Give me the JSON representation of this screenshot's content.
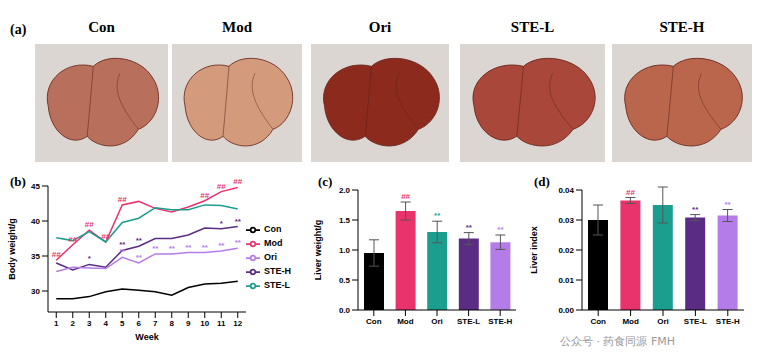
{
  "figure": {
    "title": "(a)",
    "photo_labels": [
      "Con",
      "Mod",
      "Ori",
      "STE-L",
      "STE-H"
    ]
  },
  "watermark": "公众号 · 药食同源 FMH",
  "chart_data": [
    {
      "type": "line",
      "title": "(b)",
      "xlabel": "Week",
      "ylabel": "Body weight/g",
      "x": [
        1,
        2,
        3,
        4,
        5,
        6,
        7,
        8,
        9,
        10,
        11,
        12
      ],
      "xlim": [
        0.5,
        12.5
      ],
      "xticks": [
        1,
        2,
        3,
        4,
        5,
        6,
        7,
        8,
        9,
        10,
        11,
        12
      ],
      "ylim": [
        27,
        45
      ],
      "yticks": [
        30,
        35,
        40,
        45
      ],
      "legend": "right",
      "series": [
        {
          "name": "Con",
          "color": "#000000",
          "values": [
            28.9,
            28.9,
            29.2,
            29.9,
            30.3,
            30.1,
            29.9,
            29.4,
            30.5,
            31.0,
            31.1,
            31.4
          ],
          "annotations": [
            null,
            null,
            null,
            null,
            null,
            null,
            null,
            null,
            null,
            null,
            null,
            null
          ]
        },
        {
          "name": "Mod",
          "color": "#e8336d",
          "values": [
            34.4,
            36.6,
            38.7,
            37.0,
            42.3,
            42.8,
            41.8,
            41.3,
            42.0,
            42.9,
            44.2,
            44.8
          ],
          "annotations": [
            "##",
            "##",
            "##",
            "##",
            "##",
            null,
            null,
            null,
            null,
            "##",
            "##",
            "##"
          ]
        },
        {
          "name": "STE-L",
          "color": "#1b9e8e",
          "values": [
            37.6,
            37.2,
            38.5,
            37.0,
            39.8,
            40.4,
            41.9,
            41.6,
            41.6,
            42.3,
            42.2,
            41.7
          ],
          "annotations": [
            null,
            null,
            null,
            null,
            null,
            null,
            null,
            null,
            null,
            null,
            null,
            null
          ]
        },
        {
          "name": "STE-H",
          "color": "#5b2c83",
          "values": [
            34.0,
            33.0,
            33.8,
            33.4,
            35.8,
            36.4,
            37.5,
            37.5,
            38.0,
            39.0,
            38.9,
            39.2
          ],
          "annotations": [
            null,
            null,
            "*",
            null,
            "**",
            "**",
            null,
            null,
            null,
            null,
            "*",
            "**"
          ]
        },
        {
          "name": "Ori",
          "color": "#b47ce8",
          "values": [
            32.8,
            33.4,
            33.3,
            33.2,
            34.8,
            34.0,
            35.3,
            35.3,
            35.5,
            35.5,
            35.7,
            36.1
          ],
          "annotations": [
            null,
            null,
            null,
            null,
            "**",
            "**",
            "**",
            "**",
            "**",
            "**",
            "**",
            "**"
          ]
        }
      ]
    },
    {
      "type": "bar",
      "title": "(c)",
      "ylabel": "Liver weight/g",
      "categories": [
        "Con",
        "Mod",
        "Ori",
        "STE-L",
        "STE-H"
      ],
      "values": [
        0.95,
        1.65,
        1.3,
        1.19,
        1.13
      ],
      "errors": [
        0.22,
        0.15,
        0.18,
        0.1,
        0.12
      ],
      "annotations": [
        null,
        "##",
        "**",
        "**",
        "**"
      ],
      "colors": [
        "#000000",
        "#e8336d",
        "#1b9e8e",
        "#5b2c83",
        "#b47ce8"
      ],
      "ylim": [
        0,
        2
      ],
      "yticks": [
        {
          "value": 0,
          "label": "0.0"
        },
        0.5,
        {
          "value": 1,
          "label": "1.0"
        },
        1.5,
        {
          "value": 2,
          "label": "2.0"
        }
      ]
    },
    {
      "type": "bar",
      "title": "(d)",
      "ylabel": "Liver index",
      "categories": [
        "Con",
        "Mod",
        "Ori",
        "STE-L",
        "STE-H"
      ],
      "values": [
        0.03,
        0.0365,
        0.035,
        0.0308,
        0.0315
      ],
      "errors": [
        0.005,
        0.001,
        0.006,
        0.001,
        0.002
      ],
      "annotations": [
        null,
        "##",
        null,
        "**",
        "**"
      ],
      "colors": [
        "#000000",
        "#e8336d",
        "#1b9e8e",
        "#5b2c83",
        "#b47ce8"
      ],
      "ylim": [
        0,
        0.04
      ],
      "yticks": [
        {
          "value": 0,
          "label": "0.00"
        },
        0.01,
        0.02,
        0.03,
        0.04
      ]
    }
  ]
}
